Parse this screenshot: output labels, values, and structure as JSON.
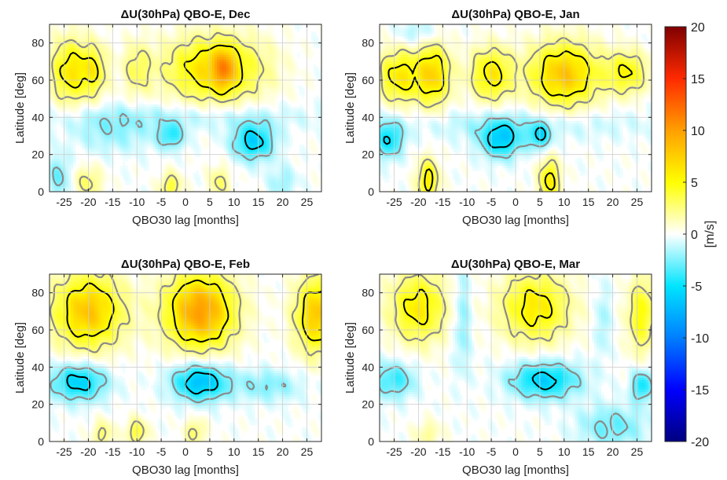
{
  "chart_data": {
    "type": "heatmap",
    "panels": [
      {
        "title": "ΔU(30hPa) QBO-E, Dec",
        "xlabel": "QBO30 lag [months]",
        "ylabel": "Latitude [deg]",
        "features": [
          {
            "lag": -24,
            "lat": 65,
            "sx": 2.5,
            "sy": 12,
            "amp": 6
          },
          {
            "lag": -19,
            "lat": 65,
            "sx": 2.0,
            "sy": 10,
            "amp": 5
          },
          {
            "lag": -10,
            "lat": 66,
            "sx": 2.0,
            "sy": 10,
            "amp": 3
          },
          {
            "lag": 6,
            "lat": 66,
            "sx": 7.0,
            "sy": 12,
            "amp": 7
          },
          {
            "lag": 8,
            "lat": 66,
            "sx": 1.5,
            "sy": 8,
            "amp": 5
          },
          {
            "lag": 14,
            "lat": 27,
            "sx": 3.0,
            "sy": 7,
            "amp": -6
          },
          {
            "lag": -3,
            "lat": 30,
            "sx": 2.0,
            "sy": 5,
            "amp": -4
          },
          {
            "lag": -15,
            "lat": 32,
            "sx": 6.0,
            "sy": 8,
            "amp": -2
          },
          {
            "lag": 0,
            "lat": 40,
            "sx": 20.0,
            "sy": 5,
            "amp": -1.5
          },
          {
            "lag": -26,
            "lat": 8,
            "sx": 1.5,
            "sy": 8,
            "amp": -3
          },
          {
            "lag": -20,
            "lat": 5,
            "sx": 2.0,
            "sy": 6,
            "amp": 3
          },
          {
            "lag": -3,
            "lat": 3,
            "sx": 1.5,
            "sy": 5,
            "amp": 4
          },
          {
            "lag": 7,
            "lat": 5,
            "sx": 1.5,
            "sy": 6,
            "amp": 3
          },
          {
            "lag": 20,
            "lat": 5,
            "sx": 2.0,
            "sy": 6,
            "amp": -2
          }
        ]
      },
      {
        "title": "ΔU(30hPa) QBO-E, Jan",
        "xlabel": "QBO30 lag [months]",
        "ylabel": "Latitude [deg]",
        "features": [
          {
            "lag": -24,
            "lat": 62,
            "sx": 3.0,
            "sy": 10,
            "amp": 6
          },
          {
            "lag": -17,
            "lat": 63,
            "sx": 2.5,
            "sy": 12,
            "amp": 7
          },
          {
            "lag": -5,
            "lat": 63,
            "sx": 3.0,
            "sy": 10,
            "amp": 6
          },
          {
            "lag": 10,
            "lat": 63,
            "sx": 5.0,
            "sy": 12,
            "amp": 8
          },
          {
            "lag": 23,
            "lat": 64,
            "sx": 3.0,
            "sy": 8,
            "amp": 5
          },
          {
            "lag": -26,
            "lat": 28,
            "sx": 2.0,
            "sy": 7,
            "amp": -5
          },
          {
            "lag": -3,
            "lat": 28,
            "sx": 3.0,
            "sy": 7,
            "amp": -6
          },
          {
            "lag": 5,
            "lat": 30,
            "sx": 1.5,
            "sy": 5,
            "amp": -5
          },
          {
            "lag": -18,
            "lat": 6,
            "sx": 1.5,
            "sy": 8,
            "amp": 6
          },
          {
            "lag": 7,
            "lat": 6,
            "sx": 1.5,
            "sy": 8,
            "amp": 6
          },
          {
            "lag": -20,
            "lat": 85,
            "sx": 3.0,
            "sy": 5,
            "amp": -2
          },
          {
            "lag": 0,
            "lat": 36,
            "sx": 20.0,
            "sy": 6,
            "amp": -1.5
          }
        ]
      },
      {
        "title": "ΔU(30hPa) QBO-E, Feb",
        "xlabel": "QBO30 lag [months]",
        "ylabel": "Latitude [deg]",
        "features": [
          {
            "lag": -20,
            "lat": 70,
            "sx": 5.0,
            "sy": 14,
            "amp": 8
          },
          {
            "lag": 3,
            "lat": 70,
            "sx": 5.0,
            "sy": 14,
            "amp": 10
          },
          {
            "lag": 27,
            "lat": 68,
            "sx": 3.0,
            "sy": 14,
            "amp": 8
          },
          {
            "lag": -22,
            "lat": 32,
            "sx": 4.0,
            "sy": 7,
            "amp": -6
          },
          {
            "lag": 3,
            "lat": 32,
            "sx": 4.0,
            "sy": 7,
            "amp": -7
          },
          {
            "lag": 17,
            "lat": 30,
            "sx": 5.0,
            "sy": 6,
            "amp": -2.5
          },
          {
            "lag": -10,
            "lat": 5,
            "sx": 1.5,
            "sy": 5,
            "amp": 4
          },
          {
            "lag": 2,
            "lat": 5,
            "sx": 1.5,
            "sy": 5,
            "amp": 3
          },
          {
            "lag": -17,
            "lat": 4,
            "sx": 1.5,
            "sy": 5,
            "amp": 3
          }
        ]
      },
      {
        "title": "ΔU(30hPa) QBO-E, Mar",
        "xlabel": "QBO30 lag [months]",
        "ylabel": "Latitude [deg]",
        "features": [
          {
            "lag": -20,
            "lat": 72,
            "sx": 4.0,
            "sy": 13,
            "amp": 6
          },
          {
            "lag": 4,
            "lat": 72,
            "sx": 5.0,
            "sy": 13,
            "amp": 6
          },
          {
            "lag": 26,
            "lat": 68,
            "sx": 2.0,
            "sy": 14,
            "amp": 5
          },
          {
            "lag": -25,
            "lat": 33,
            "sx": 3.0,
            "sy": 7,
            "amp": -4
          },
          {
            "lag": 6,
            "lat": 33,
            "sx": 5.0,
            "sy": 7,
            "amp": -6
          },
          {
            "lag": 26,
            "lat": 30,
            "sx": 1.5,
            "sy": 6,
            "amp": -5
          },
          {
            "lag": -11,
            "lat": 65,
            "sx": 1.2,
            "sy": 20,
            "amp": -2.5
          },
          {
            "lag": 18,
            "lat": 65,
            "sx": 1.0,
            "sy": 14,
            "amp": -2
          },
          {
            "lag": 20,
            "lat": 8,
            "sx": 5.0,
            "sy": 8,
            "amp": -3
          },
          {
            "lag": -18,
            "lat": 4,
            "sx": 2.0,
            "sy": 5,
            "amp": 2
          }
        ]
      }
    ],
    "xlim": [
      -28,
      28
    ],
    "ylim": [
      0,
      90
    ],
    "xticks": [
      -25,
      -20,
      -15,
      -10,
      -5,
      0,
      5,
      10,
      15,
      20,
      25
    ],
    "yticks": [
      0,
      20,
      40,
      60,
      80
    ],
    "grid": true,
    "contours": [
      {
        "level": 2.5,
        "color": "#8a8a8a"
      },
      {
        "level": 5,
        "color": "#000000"
      },
      {
        "level": -2.5,
        "color": "#8a8a8a"
      },
      {
        "level": -5,
        "color": "#000000"
      }
    ],
    "colorbar": {
      "label": "[m/s]",
      "min": -20,
      "max": 20,
      "ticks": [
        -20,
        -15,
        -10,
        -5,
        0,
        5,
        10,
        15,
        20
      ],
      "colormap": [
        "#00007f",
        "#0000ff",
        "#007fff",
        "#00e5ff",
        "#ffffff",
        "#ffff00",
        "#ff9f00",
        "#ff2a00",
        "#7f0000"
      ]
    }
  }
}
